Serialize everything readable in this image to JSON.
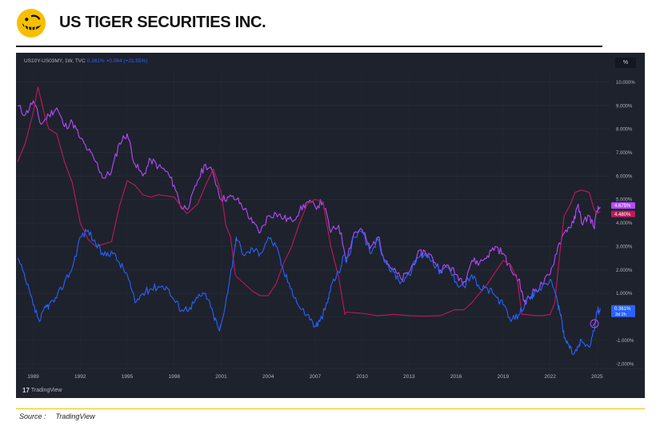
{
  "header": {
    "company_name": "US TIGER SECURITIES INC.",
    "logo_color": "#f6c000"
  },
  "chart_toolbar": {
    "symbol": "US10Y-US03MY, 1W, TVC",
    "last_value": "0.361%",
    "change": "+0.064 (+21.55%)",
    "percent_button": "%"
  },
  "branding": {
    "watermark": "TradingView",
    "mark": "17"
  },
  "footer": {
    "source_label": "Source :",
    "source_value": "TradingView"
  },
  "chart_data": {
    "type": "line",
    "title": "",
    "xlabel": "",
    "ylabel": "",
    "xlim": [
      1987.9,
      2025.8
    ],
    "ylim": [
      -2.2,
      10.5
    ],
    "grid": true,
    "y_axis_position": "right",
    "x_ticks": [
      {
        "value": 1989,
        "label": "1989"
      },
      {
        "value": 1992,
        "label": "1992"
      },
      {
        "value": 1995,
        "label": "1995"
      },
      {
        "value": 1998,
        "label": "1998"
      },
      {
        "value": 2001,
        "label": "2001"
      },
      {
        "value": 2004,
        "label": "2004"
      },
      {
        "value": 2007,
        "label": "2007"
      },
      {
        "value": 2010,
        "label": "2010"
      },
      {
        "value": 2013,
        "label": "2013"
      },
      {
        "value": 2016,
        "label": "2016"
      },
      {
        "value": 2019,
        "label": "2019"
      },
      {
        "value": 2022,
        "label": "2022"
      },
      {
        "value": 2025,
        "label": "2025"
      }
    ],
    "y_ticks": [
      {
        "value": 10,
        "label": "10.000%"
      },
      {
        "value": 9,
        "label": "9.000%"
      },
      {
        "value": 8,
        "label": "8.000%"
      },
      {
        "value": 7,
        "label": "7.000%"
      },
      {
        "value": 6,
        "label": "6.000%"
      },
      {
        "value": 5,
        "label": "5.000%"
      },
      {
        "value": 4,
        "label": "4.000%"
      },
      {
        "value": 3,
        "label": "3.000%"
      },
      {
        "value": 2,
        "label": "2.000%"
      },
      {
        "value": 1,
        "label": "1.000%"
      },
      {
        "value": -1,
        "label": "-1.000%"
      },
      {
        "value": -2,
        "label": "-2.000%"
      }
    ],
    "series": [
      {
        "color": "#b44cff",
        "last_label": "4.675%",
        "points": [
          [
            1988,
            9.0
          ],
          [
            1988.5,
            8.6
          ],
          [
            1989,
            9.2
          ],
          [
            1989.5,
            8.2
          ],
          [
            1990,
            8.6
          ],
          [
            1990.5,
            8.9
          ],
          [
            1991,
            8.1
          ],
          [
            1991.5,
            8.3
          ],
          [
            1992,
            7.6
          ],
          [
            1992.5,
            7.1
          ],
          [
            1993,
            6.6
          ],
          [
            1993.5,
            5.9
          ],
          [
            1994,
            6.2
          ],
          [
            1994.5,
            7.4
          ],
          [
            1995,
            7.8
          ],
          [
            1995.5,
            6.5
          ],
          [
            1996,
            6.0
          ],
          [
            1996.5,
            6.7
          ],
          [
            1997,
            6.4
          ],
          [
            1997.5,
            6.2
          ],
          [
            1998,
            5.6
          ],
          [
            1998.5,
            4.6
          ],
          [
            1999,
            4.8
          ],
          [
            1999.5,
            5.8
          ],
          [
            2000,
            6.5
          ],
          [
            2000.5,
            6.1
          ],
          [
            2001,
            5.0
          ],
          [
            2001.5,
            5.1
          ],
          [
            2002,
            5.0
          ],
          [
            2002.5,
            4.6
          ],
          [
            2003,
            4.0
          ],
          [
            2003.5,
            3.6
          ],
          [
            2004,
            4.3
          ],
          [
            2004.5,
            4.4
          ],
          [
            2005,
            4.2
          ],
          [
            2005.5,
            4.1
          ],
          [
            2006,
            4.5
          ],
          [
            2006.5,
            4.9
          ],
          [
            2007,
            4.7
          ],
          [
            2007.5,
            4.9
          ],
          [
            2008,
            3.6
          ],
          [
            2008.5,
            3.9
          ],
          [
            2009,
            2.5
          ],
          [
            2009.5,
            3.6
          ],
          [
            2010,
            3.7
          ],
          [
            2010.5,
            2.9
          ],
          [
            2011,
            3.4
          ],
          [
            2011.5,
            2.4
          ],
          [
            2012,
            2.0
          ],
          [
            2012.5,
            1.6
          ],
          [
            2013,
            1.9
          ],
          [
            2013.5,
            2.6
          ],
          [
            2014,
            2.8
          ],
          [
            2014.5,
            2.5
          ],
          [
            2015,
            2.0
          ],
          [
            2015.5,
            2.2
          ],
          [
            2016,
            1.8
          ],
          [
            2016.5,
            1.5
          ],
          [
            2017,
            2.4
          ],
          [
            2017.5,
            2.3
          ],
          [
            2018,
            2.6
          ],
          [
            2018.5,
            3.0
          ],
          [
            2019,
            2.7
          ],
          [
            2019.5,
            2.0
          ],
          [
            2020,
            1.6
          ],
          [
            2020.3,
            0.7
          ],
          [
            2020.5,
            0.7
          ],
          [
            2021,
            1.1
          ],
          [
            2021.5,
            1.4
          ],
          [
            2022,
            1.8
          ],
          [
            2022.5,
            3.0
          ],
          [
            2023,
            3.7
          ],
          [
            2023.5,
            4.0
          ],
          [
            2023.8,
            4.8
          ],
          [
            2024,
            4.0
          ],
          [
            2024.5,
            4.3
          ],
          [
            2024.8,
            3.8
          ],
          [
            2025,
            4.5
          ],
          [
            2025.2,
            4.675
          ]
        ]
      },
      {
        "color": "#c2185b",
        "last_label": "4.480%",
        "points": [
          [
            1988,
            6.6
          ],
          [
            1988.5,
            7.4
          ],
          [
            1989,
            8.7
          ],
          [
            1989.3,
            9.8
          ],
          [
            1989.8,
            8.4
          ],
          [
            1990,
            8.0
          ],
          [
            1990.5,
            7.8
          ],
          [
            1991,
            6.6
          ],
          [
            1991.5,
            5.7
          ],
          [
            1992,
            4.0
          ],
          [
            1992.5,
            3.3
          ],
          [
            1993,
            3.0
          ],
          [
            1994,
            3.2
          ],
          [
            1994.5,
            4.7
          ],
          [
            1995,
            5.8
          ],
          [
            1995.5,
            5.6
          ],
          [
            1996,
            5.2
          ],
          [
            1996.5,
            5.1
          ],
          [
            1997,
            5.2
          ],
          [
            1998,
            5.1
          ],
          [
            1998.8,
            4.4
          ],
          [
            1999,
            4.5
          ],
          [
            1999.5,
            4.8
          ],
          [
            2000,
            5.6
          ],
          [
            2000.5,
            6.3
          ],
          [
            2001,
            5.3
          ],
          [
            2001.3,
            3.9
          ],
          [
            2001.6,
            3.4
          ],
          [
            2001.9,
            1.8
          ],
          [
            2002,
            1.7
          ],
          [
            2003,
            1.1
          ],
          [
            2003.5,
            0.9
          ],
          [
            2004,
            0.9
          ],
          [
            2004.5,
            1.4
          ],
          [
            2005,
            2.3
          ],
          [
            2005.5,
            3.0
          ],
          [
            2006,
            4.0
          ],
          [
            2006.5,
            4.8
          ],
          [
            2007,
            5.0
          ],
          [
            2007.5,
            4.9
          ],
          [
            2008,
            3.0
          ],
          [
            2008.5,
            1.7
          ],
          [
            2008.9,
            0.1
          ],
          [
            2009,
            0.2
          ],
          [
            2010,
            0.15
          ],
          [
            2011,
            0.05
          ],
          [
            2012,
            0.1
          ],
          [
            2013,
            0.05
          ],
          [
            2014,
            0.03
          ],
          [
            2015,
            0.05
          ],
          [
            2015.9,
            0.3
          ],
          [
            2016,
            0.3
          ],
          [
            2016.5,
            0.3
          ],
          [
            2017,
            0.6
          ],
          [
            2017.5,
            1.0
          ],
          [
            2018,
            1.4
          ],
          [
            2018.5,
            1.9
          ],
          [
            2019,
            2.4
          ],
          [
            2019.5,
            2.2
          ],
          [
            2019.9,
            1.6
          ],
          [
            2020.2,
            0.1
          ],
          [
            2020.5,
            0.1
          ],
          [
            2021,
            0.05
          ],
          [
            2021.5,
            0.05
          ],
          [
            2022,
            0.1
          ],
          [
            2022.3,
            0.6
          ],
          [
            2022.6,
            2.6
          ],
          [
            2022.9,
            4.3
          ],
          [
            2023.3,
            4.8
          ],
          [
            2023.6,
            5.3
          ],
          [
            2024,
            5.4
          ],
          [
            2024.5,
            5.3
          ],
          [
            2024.8,
            4.6
          ],
          [
            2025,
            4.4
          ],
          [
            2025.2,
            4.48
          ]
        ]
      },
      {
        "color": "#2962ff",
        "last_label": "0.361%",
        "last_sublabel": "2d 2h",
        "points": [
          [
            1988,
            2.5
          ],
          [
            1988.5,
            1.6
          ],
          [
            1989,
            0.5
          ],
          [
            1989.4,
            -0.2
          ],
          [
            1989.8,
            0.4
          ],
          [
            1990,
            0.5
          ],
          [
            1990.5,
            0.8
          ],
          [
            1991,
            1.5
          ],
          [
            1991.5,
            2.1
          ],
          [
            1992,
            3.4
          ],
          [
            1992.5,
            3.7
          ],
          [
            1993,
            3.1
          ],
          [
            1993.5,
            2.6
          ],
          [
            1994,
            2.8
          ],
          [
            1994.5,
            2.3
          ],
          [
            1995,
            1.8
          ],
          [
            1995.5,
            0.6
          ],
          [
            1996,
            1.0
          ],
          [
            1996.5,
            1.2
          ],
          [
            1997,
            1.3
          ],
          [
            1997.5,
            1.3
          ],
          [
            1998,
            0.7
          ],
          [
            1998.5,
            0.3
          ],
          [
            1999,
            0.4
          ],
          [
            1999.5,
            0.8
          ],
          [
            2000,
            1.0
          ],
          [
            2000.5,
            0.1
          ],
          [
            2000.9,
            -0.6
          ],
          [
            2001,
            -0.3
          ],
          [
            2001.5,
            1.4
          ],
          [
            2001.9,
            3.1
          ],
          [
            2002,
            3.3
          ],
          [
            2002.5,
            2.6
          ],
          [
            2003,
            2.9
          ],
          [
            2003.5,
            2.7
          ],
          [
            2004,
            3.4
          ],
          [
            2004.5,
            3.0
          ],
          [
            2005,
            1.9
          ],
          [
            2005.5,
            1.2
          ],
          [
            2006,
            0.4
          ],
          [
            2006.5,
            0.1
          ],
          [
            2007,
            -0.4
          ],
          [
            2007.3,
            -0.2
          ],
          [
            2007.8,
            0.6
          ],
          [
            2008,
            1.3
          ],
          [
            2008.5,
            1.9
          ],
          [
            2008.9,
            2.7
          ],
          [
            2009,
            2.3
          ],
          [
            2009.5,
            3.4
          ],
          [
            2010,
            3.6
          ],
          [
            2010.5,
            2.7
          ],
          [
            2011,
            3.3
          ],
          [
            2011.5,
            2.3
          ],
          [
            2012,
            1.9
          ],
          [
            2012.5,
            1.5
          ],
          [
            2013,
            1.8
          ],
          [
            2013.5,
            2.5
          ],
          [
            2014,
            2.7
          ],
          [
            2014.5,
            2.4
          ],
          [
            2015,
            1.9
          ],
          [
            2015.5,
            2.1
          ],
          [
            2016,
            1.5
          ],
          [
            2016.5,
            1.3
          ],
          [
            2017,
            1.8
          ],
          [
            2017.5,
            1.2
          ],
          [
            2018,
            1.2
          ],
          [
            2018.5,
            0.9
          ],
          [
            2019,
            0.5
          ],
          [
            2019.5,
            -0.2
          ],
          [
            2020,
            0.1
          ],
          [
            2020.4,
            0.6
          ],
          [
            2020.8,
            0.8
          ],
          [
            2021,
            1.0
          ],
          [
            2021.5,
            1.3
          ],
          [
            2022,
            1.6
          ],
          [
            2022.5,
            0.5
          ],
          [
            2022.7,
            0.1
          ],
          [
            2022.9,
            -0.9
          ],
          [
            2023.2,
            -1.2
          ],
          [
            2023.5,
            -1.6
          ],
          [
            2023.8,
            -1.3
          ],
          [
            2024,
            -1.0
          ],
          [
            2024.5,
            -1.3
          ],
          [
            2024.8,
            -0.6
          ],
          [
            2025,
            0.2
          ],
          [
            2025.2,
            0.361
          ]
        ]
      }
    ]
  }
}
